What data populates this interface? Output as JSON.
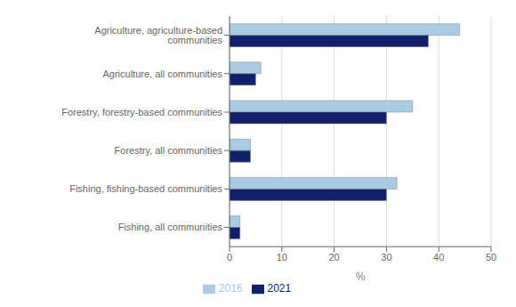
{
  "chart_data": {
    "type": "bar",
    "orientation": "horizontal",
    "categories": [
      "Fishing, all communities",
      "Fishing, fishing-based communities",
      "Forestry, all communities",
      "Forestry, forestry-based communities",
      "Agriculture, all communities",
      "Agriculture, agriculture-based communities"
    ],
    "series": [
      {
        "name": "2016",
        "color": "#a8cce4",
        "values": [
          2.0,
          32.0,
          4.0,
          35.0,
          6.0,
          44.0
        ]
      },
      {
        "name": "2021",
        "color": "#12206b",
        "values": [
          2.0,
          30.0,
          4.0,
          30.0,
          5.0,
          38.0
        ]
      }
    ],
    "xlabel": "%",
    "xlim": [
      0,
      50
    ],
    "xticks": [
      0,
      10,
      20,
      30,
      40,
      50
    ],
    "grid": true,
    "legend": "bottom"
  }
}
